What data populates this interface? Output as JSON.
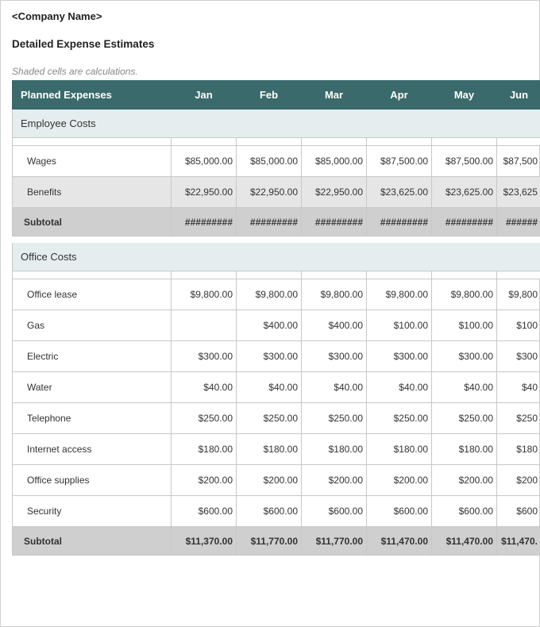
{
  "company_name": "<Company Name>",
  "title": "Detailed Expense Estimates",
  "note": "Shaded cells are calculations.",
  "header": {
    "label": "Planned Expenses",
    "months": [
      "Jan",
      "Feb",
      "Mar",
      "Apr",
      "May",
      "Jun"
    ]
  },
  "colors": {
    "header_bg": "#3a6a6b",
    "header_fg": "#ffffff",
    "section_bg": "#e6edee",
    "shaded_bg": "#e6e6e6",
    "subtotal_bg": "#cfcfcf",
    "border": "#c8c8c8",
    "note_fg": "#888888"
  },
  "sections": [
    {
      "name": "Employee Costs",
      "rows": [
        {
          "label": "Wages",
          "shaded": false,
          "vals": [
            "$85,000.00",
            "$85,000.00",
            "$85,000.00",
            "$87,500.00",
            "$87,500.00",
            "$87,500"
          ]
        },
        {
          "label": "Benefits",
          "shaded": true,
          "vals": [
            "$22,950.00",
            "$22,950.00",
            "$22,950.00",
            "$23,625.00",
            "$23,625.00",
            "$23,625"
          ]
        }
      ],
      "subtotal": {
        "label": "Subtotal",
        "vals": [
          "#########",
          "#########",
          "#########",
          "#########",
          "#########",
          "######"
        ]
      }
    },
    {
      "name": "Office Costs",
      "rows": [
        {
          "label": "Office lease",
          "shaded": false,
          "vals": [
            "$9,800.00",
            "$9,800.00",
            "$9,800.00",
            "$9,800.00",
            "$9,800.00",
            "$9,800"
          ]
        },
        {
          "label": "Gas",
          "shaded": false,
          "vals": [
            "",
            "$400.00",
            "$400.00",
            "$100.00",
            "$100.00",
            "$100"
          ]
        },
        {
          "label": "Electric",
          "shaded": false,
          "vals": [
            "$300.00",
            "$300.00",
            "$300.00",
            "$300.00",
            "$300.00",
            "$300"
          ]
        },
        {
          "label": "Water",
          "shaded": false,
          "vals": [
            "$40.00",
            "$40.00",
            "$40.00",
            "$40.00",
            "$40.00",
            "$40"
          ]
        },
        {
          "label": "Telephone",
          "shaded": false,
          "vals": [
            "$250.00",
            "$250.00",
            "$250.00",
            "$250.00",
            "$250.00",
            "$250"
          ]
        },
        {
          "label": "Internet access",
          "shaded": false,
          "vals": [
            "$180.00",
            "$180.00",
            "$180.00",
            "$180.00",
            "$180.00",
            "$180"
          ]
        },
        {
          "label": "Office supplies",
          "shaded": false,
          "vals": [
            "$200.00",
            "$200.00",
            "$200.00",
            "$200.00",
            "$200.00",
            "$200"
          ]
        },
        {
          "label": "Security",
          "shaded": false,
          "vals": [
            "$600.00",
            "$600.00",
            "$600.00",
            "$600.00",
            "$600.00",
            "$600"
          ]
        }
      ],
      "subtotal": {
        "label": "Subtotal",
        "vals": [
          "$11,370.00",
          "$11,770.00",
          "$11,770.00",
          "$11,470.00",
          "$11,470.00",
          "$11,470."
        ]
      }
    }
  ]
}
